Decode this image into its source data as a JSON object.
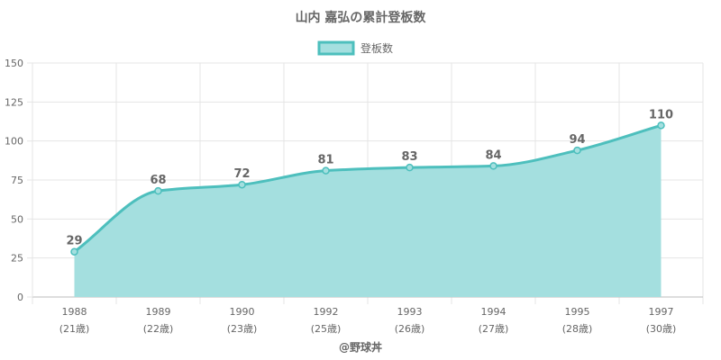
{
  "chart_data": {
    "type": "area",
    "title": "山内 嘉弘の累計登板数",
    "legend": {
      "label": "登板数",
      "position": "top"
    },
    "x": [
      "1988",
      "1989",
      "1990",
      "1992",
      "1993",
      "1994",
      "1995",
      "1997"
    ],
    "x_sub": [
      "(21歳)",
      "(22歳)",
      "(23歳)",
      "(25歳)",
      "(26歳)",
      "(27歳)",
      "(28歳)",
      "(30歳)"
    ],
    "series": [
      {
        "name": "登板数",
        "values": [
          29,
          68,
          72,
          81,
          83,
          84,
          94,
          110
        ]
      }
    ],
    "ylim": [
      0,
      150
    ],
    "yticks": [
      0,
      25,
      50,
      75,
      100,
      125,
      150
    ],
    "grid": true,
    "colors": {
      "line": "#4dbfbd",
      "fill": "#a4dfdf",
      "point": "#4dbfbd"
    }
  },
  "credit": "@野球丼"
}
